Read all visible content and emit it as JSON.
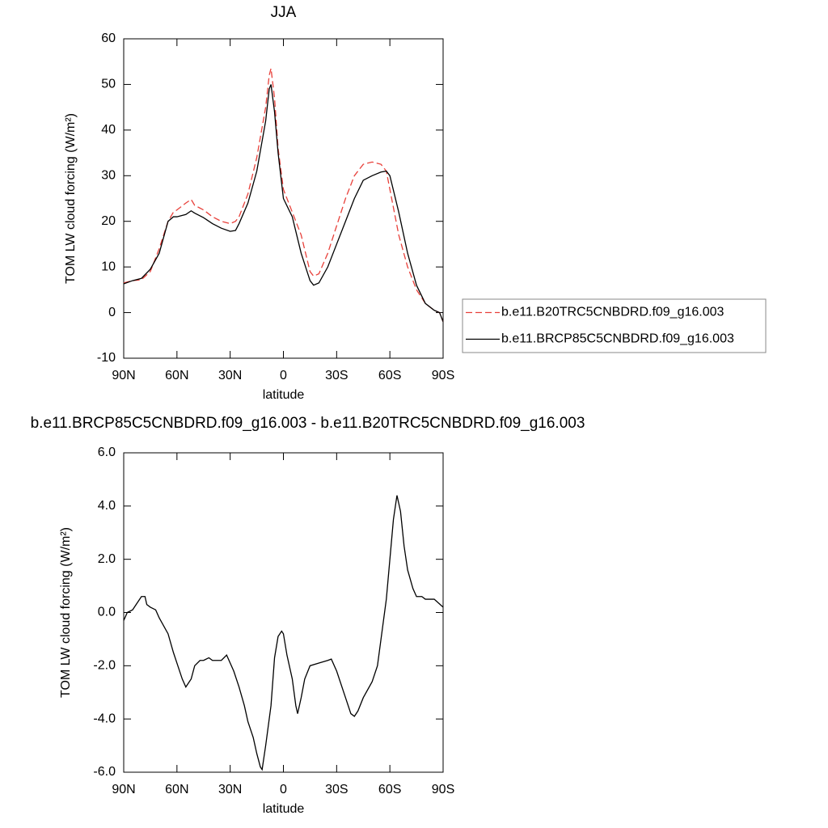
{
  "chart_data": [
    {
      "type": "line",
      "title": "JJA",
      "x_label": "latitude",
      "y_label": "TOM LW cloud forcing (W/m²)",
      "x": [
        90,
        85,
        80,
        75,
        70,
        65,
        62,
        60,
        55,
        52,
        50,
        45,
        40,
        35,
        30,
        27,
        25,
        20,
        15,
        10,
        8,
        7,
        5,
        3,
        0,
        -5,
        -10,
        -15,
        -17,
        -20,
        -25,
        -30,
        -35,
        -40,
        -45,
        -50,
        -55,
        -58,
        -60,
        -65,
        -70,
        -75,
        -80,
        -85,
        -88,
        -90
      ],
      "series": [
        {
          "name": "b.e11.B20TRC5CNBDRD.f09_g16.003",
          "color": "#e8403a",
          "dashed": true,
          "values": [
            6.5,
            7,
            7.2,
            9,
            14,
            20,
            22,
            22.5,
            24,
            24.8,
            23.5,
            22.5,
            21,
            20,
            19.5,
            20,
            21,
            26,
            34,
            45,
            52,
            53.5,
            47,
            36,
            27,
            22,
            17,
            9,
            8,
            8.5,
            13,
            19,
            25,
            30,
            32.5,
            33,
            32.5,
            31,
            27,
            17,
            10,
            5,
            2,
            0.5,
            0,
            -2
          ]
        },
        {
          "name": "b.e11.BRCP85C5CNBDRD.f09_g16.003",
          "color": "#000000",
          "dashed": false,
          "values": [
            6.3,
            7,
            7.5,
            9.5,
            13,
            20,
            21,
            21,
            21.5,
            22.3,
            21.8,
            20.8,
            19.5,
            18.5,
            17.8,
            18,
            19.5,
            24,
            31,
            42,
            49,
            50,
            44,
            35,
            25,
            21,
            13,
            7,
            6,
            6.5,
            10,
            15,
            20,
            25,
            29,
            30,
            30.8,
            31,
            30,
            22,
            13,
            6,
            2,
            0.5,
            0,
            -2
          ]
        }
      ],
      "xlim": [
        90,
        -90
      ],
      "xticks": [
        {
          "value": 90,
          "label": "90N"
        },
        {
          "value": 60,
          "label": "60N"
        },
        {
          "value": 30,
          "label": "30N"
        },
        0,
        {
          "value": -30,
          "label": "30S"
        },
        {
          "value": -60,
          "label": "60S"
        },
        {
          "value": -90,
          "label": "90S"
        }
      ],
      "ylim": [
        -10,
        60
      ],
      "yticks": [
        -10,
        0,
        10,
        20,
        30,
        40,
        50,
        60
      ],
      "legend": "right"
    },
    {
      "type": "line",
      "title": "b.e11.BRCP85C5CNBDRD.f09_g16.003 - b.e11.B20TRC5CNBDRD.f09_g16.003",
      "x_label": "latitude",
      "y_label": "TOM LW cloud forcing (W/m²)",
      "x": [
        90,
        88,
        85,
        83,
        80,
        78,
        77,
        75,
        72,
        70,
        65,
        62,
        60,
        57,
        55,
        52,
        50,
        47,
        45,
        42,
        40,
        37,
        35,
        32,
        30,
        28,
        25,
        22,
        20,
        17,
        15,
        13,
        12,
        10,
        7,
        5,
        3,
        1,
        0,
        -2,
        -5,
        -7,
        -8,
        -10,
        -12,
        -15,
        -20,
        -25,
        -27,
        -30,
        -35,
        -38,
        -40,
        -42,
        -45,
        -50,
        -53,
        -55,
        -58,
        -60,
        -62,
        -64,
        -66,
        -68,
        -70,
        -73,
        -75,
        -78,
        -80,
        -85,
        -90
      ],
      "values": [
        -0.3,
        0,
        0.1,
        0.3,
        0.6,
        0.6,
        0.3,
        0.2,
        0.1,
        -0.2,
        -0.8,
        -1.5,
        -1.9,
        -2.5,
        -2.8,
        -2.5,
        -2.0,
        -1.8,
        -1.8,
        -1.7,
        -1.8,
        -1.8,
        -1.8,
        -1.6,
        -1.9,
        -2.2,
        -2.8,
        -3.5,
        -4.1,
        -4.7,
        -5.3,
        -5.8,
        -5.9,
        -5.0,
        -3.5,
        -1.7,
        -0.9,
        -0.7,
        -0.8,
        -1.6,
        -2.5,
        -3.5,
        -3.8,
        -3.2,
        -2.5,
        -2.0,
        -1.9,
        -1.8,
        -1.75,
        -2.2,
        -3.2,
        -3.8,
        -3.9,
        -3.7,
        -3.2,
        -2.6,
        -2.0,
        -1.0,
        0.5,
        2.0,
        3.5,
        4.4,
        3.8,
        2.5,
        1.6,
        0.9,
        0.6,
        0.6,
        0.5,
        0.5,
        0.2
      ],
      "color": "#000000",
      "xlim": [
        90,
        -90
      ],
      "xticks": [
        {
          "value": 90,
          "label": "90N"
        },
        {
          "value": 60,
          "label": "60N"
        },
        {
          "value": 30,
          "label": "30N"
        },
        0,
        {
          "value": -30,
          "label": "30S"
        },
        {
          "value": -60,
          "label": "60S"
        },
        {
          "value": -90,
          "label": "90S"
        }
      ],
      "ylim": [
        -6,
        6
      ],
      "yticks": [
        {
          "value": -6,
          "label": "-6.0"
        },
        {
          "value": -4,
          "label": "-4.0"
        },
        {
          "value": -2,
          "label": "-2.0"
        },
        {
          "value": 0,
          "label": "0.0"
        },
        {
          "value": 2,
          "label": "2.0"
        },
        {
          "value": 4,
          "label": "4.0"
        },
        {
          "value": 6,
          "label": "6.0"
        }
      ]
    }
  ]
}
